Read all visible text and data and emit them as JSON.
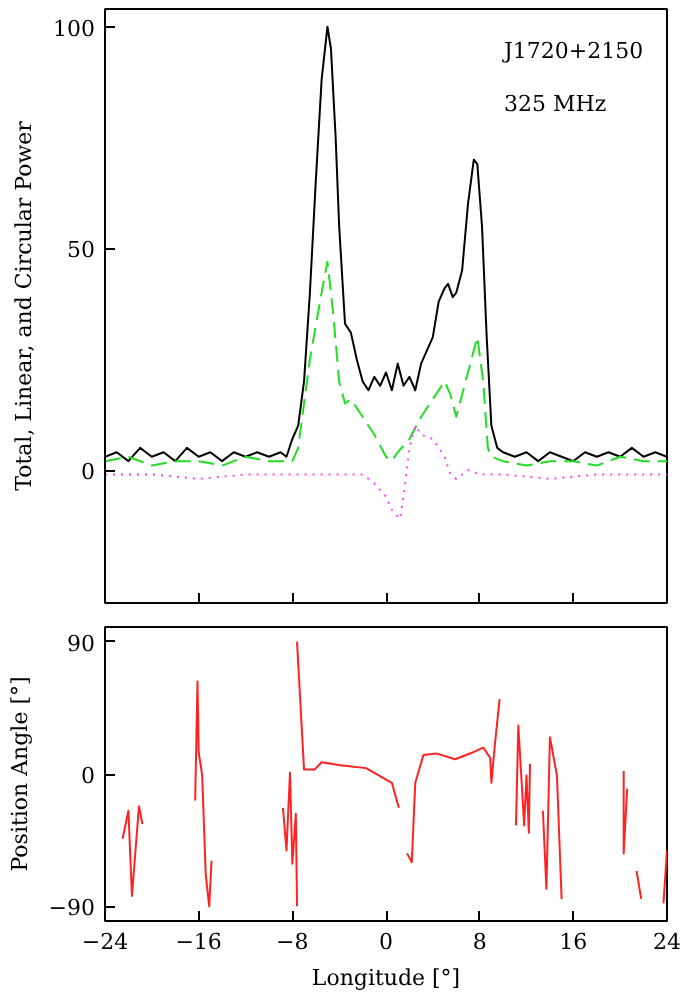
{
  "chart_data": [
    {
      "type": "line",
      "ylabel": "Total, Linear, and Circular Power",
      "xlim": [
        -24,
        24
      ],
      "ylim": [
        -30,
        104
      ],
      "xticks": [
        -24,
        -16,
        -8,
        0,
        8,
        16,
        24
      ],
      "yticks": [
        0,
        50,
        100
      ],
      "tick_labels": "y",
      "grid": false,
      "annotations": [
        "J1720+2150",
        "325 MHz"
      ],
      "series": [
        {
          "color": "#000000",
          "line_style": "solid",
          "x": [
            -24,
            -23,
            -22,
            -21,
            -20,
            -19,
            -18,
            -17,
            -16,
            -15,
            -14,
            -13,
            -12,
            -11,
            -10,
            -9,
            -8.5,
            -8,
            -7.5,
            -7,
            -6.5,
            -6,
            -5.5,
            -5,
            -4.7,
            -4.3,
            -4,
            -3.5,
            -3,
            -2.5,
            -2,
            -1.5,
            -1,
            -0.5,
            0,
            0.5,
            1,
            1.5,
            2,
            2.5,
            3,
            3.5,
            4,
            4.5,
            5,
            5.3,
            5.7,
            6,
            6.5,
            7,
            7.5,
            7.8,
            8.2,
            8.6,
            9,
            9.5,
            10,
            11,
            12,
            13,
            14,
            15,
            16,
            17,
            18,
            19,
            20,
            21,
            22,
            23,
            24
          ],
          "values": [
            3,
            4,
            2,
            5,
            3,
            4,
            2,
            5,
            3,
            4,
            2,
            4,
            3,
            4,
            3,
            4,
            3,
            7,
            10,
            20,
            40,
            65,
            88,
            100,
            95,
            75,
            55,
            33,
            31,
            25,
            20,
            18,
            21,
            19,
            22,
            18,
            24,
            19,
            21,
            18,
            24,
            27,
            30,
            38,
            41,
            42,
            39,
            40,
            45,
            60,
            70,
            69,
            55,
            30,
            10,
            5,
            4,
            3,
            4,
            2,
            4,
            3,
            2,
            4,
            3,
            4,
            3,
            5,
            3,
            4,
            3
          ]
        },
        {
          "color": "#22dd22",
          "line_style": "dashed",
          "x": [
            -24,
            -22,
            -20,
            -18,
            -16,
            -14,
            -12,
            -10,
            -8,
            -7.5,
            -6.5,
            -5.5,
            -5,
            -4.5,
            -4,
            -3.5,
            -3,
            -2,
            -1,
            0,
            0.5,
            1,
            2,
            3,
            4,
            5,
            5.5,
            6,
            7,
            7.8,
            8.3,
            8.7,
            9,
            10,
            12,
            14,
            16,
            18,
            20,
            22,
            24
          ],
          "values": [
            2,
            3,
            1,
            2,
            2,
            1,
            3,
            2,
            2,
            5,
            25,
            40,
            47,
            35,
            20,
            15,
            16,
            12,
            8,
            3,
            2,
            4,
            7,
            12,
            16,
            20,
            17,
            12,
            22,
            30,
            20,
            5,
            3,
            2,
            1,
            2,
            2,
            1,
            3,
            2,
            2
          ]
        },
        {
          "color": "#ff44ff",
          "line_style": "dotted",
          "x": [
            -24,
            -20,
            -16,
            -12,
            -8,
            -5,
            -3,
            -2,
            -1,
            0,
            0.5,
            1.2,
            1.6,
            2,
            2.5,
            3,
            4,
            5,
            5.5,
            6,
            7,
            8,
            10,
            14,
            18,
            22,
            24
          ],
          "values": [
            -1,
            -1,
            -2,
            -1,
            -1,
            -1,
            -1,
            -1,
            -3,
            -6,
            -9,
            -11,
            -4,
            5,
            10,
            8,
            7,
            3,
            -1,
            -2,
            0,
            -1,
            -1,
            -2,
            -1,
            -1,
            -1
          ]
        }
      ]
    },
    {
      "type": "line",
      "xlabel": "Longitude [°]",
      "ylabel": "Position Angle [°]",
      "xlim": [
        -24,
        24
      ],
      "ylim": [
        -100,
        100
      ],
      "xticks": [
        -24,
        -16,
        -8,
        0,
        8,
        16,
        24
      ],
      "yticks": [
        90,
        0,
        -90
      ],
      "grid": false,
      "series": [
        {
          "color": "#ff2222",
          "x": [
            -22.5,
            -22,
            -21.7,
            -21.1,
            -20.8
          ],
          "values": [
            -44,
            -25,
            -83,
            -22,
            -34
          ]
        },
        {
          "color": "#ff2222",
          "x": [
            -16.3,
            -16.1,
            -16,
            -15.7,
            -15.4,
            -15.1,
            -14.9
          ],
          "values": [
            -18,
            63,
            15,
            -1,
            -68,
            -90,
            -59
          ]
        },
        {
          "color": "#ff2222",
          "x": [
            -8.8,
            -8.5,
            -8.2,
            -8,
            -7.7,
            -7.6
          ],
          "values": [
            -23,
            -52,
            1,
            -61,
            -27,
            -90
          ]
        },
        {
          "color": "#ff2222",
          "x": [
            -7.6,
            -7,
            -6.1,
            -5.5,
            -3.9,
            -1.7,
            -0.4,
            0.5,
            1.1
          ],
          "values": [
            90,
            3,
            3,
            8,
            6,
            4,
            -2,
            -6,
            -23
          ]
        },
        {
          "color": "#ff2222",
          "x": [
            1.8,
            2.2,
            2.5,
            3.2,
            4.3,
            5.9,
            7.5,
            8.3,
            8.9,
            9,
            9.3,
            9.7
          ],
          "values": [
            -54,
            -60,
            -6,
            13,
            14,
            10,
            15,
            18,
            11,
            -6,
            20,
            51
          ]
        },
        {
          "color": "#ff2222",
          "x": [
            11.1,
            11.3,
            11.8,
            12,
            12.2,
            12.3
          ],
          "values": [
            -35,
            33,
            -35,
            -1,
            -40,
            7
          ]
        },
        {
          "color": "#ff2222",
          "x": [
            13.4,
            13.7,
            14,
            14.6,
            15
          ],
          "values": [
            -25,
            -78,
            25,
            -1,
            -85
          ]
        },
        {
          "color": "#ff2222",
          "x": [
            20.3,
            20.3,
            20.6
          ],
          "values": [
            2,
            -54,
            -10
          ]
        },
        {
          "color": "#ff2222",
          "x": [
            21.4,
            21.8
          ],
          "values": [
            -66,
            -85
          ]
        },
        {
          "color": "#ff2222",
          "x": [
            23.7,
            24
          ],
          "values": [
            -88,
            -52
          ]
        }
      ]
    }
  ]
}
